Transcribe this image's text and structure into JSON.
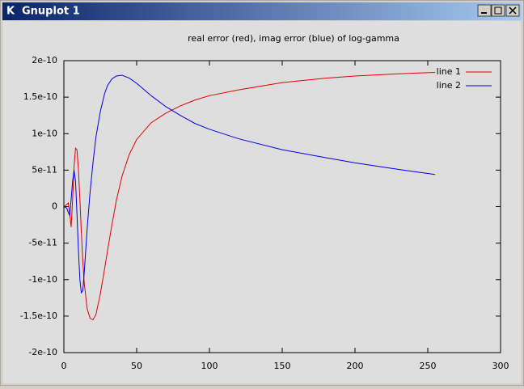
{
  "window": {
    "title": "Gnuplot 1"
  },
  "chart_data": {
    "type": "line",
    "title": "real error (red), imag error (blue) of log-gamma",
    "x": [
      0,
      2,
      3,
      4,
      5,
      6,
      7,
      8,
      9,
      10,
      11,
      12,
      13,
      14,
      16,
      18,
      20,
      22,
      25,
      28,
      30,
      33,
      36,
      40,
      45,
      50,
      60,
      70,
      80,
      90,
      100,
      120,
      150,
      180,
      200,
      230,
      255
    ],
    "series": [
      {
        "name": "line 1",
        "color": "#e00000",
        "values": [
          0,
          3e-12,
          5e-12,
          -1e-11,
          -2.8e-11,
          1e-11,
          5.5e-11,
          8e-11,
          7.8e-11,
          5e-11,
          1e-11,
          -3.5e-11,
          -7.5e-11,
          -1.05e-10,
          -1.4e-10,
          -1.53e-10,
          -1.55e-10,
          -1.48e-10,
          -1.2e-10,
          -8.5e-11,
          -6e-11,
          -2.5e-11,
          8e-12,
          4.2e-11,
          7.2e-11,
          9.2e-11,
          1.15e-10,
          1.28e-10,
          1.38e-10,
          1.46e-10,
          1.52e-10,
          1.6e-10,
          1.7e-10,
          1.76e-10,
          1.79e-10,
          1.82e-10,
          1.84e-10
        ]
      },
      {
        "name": "line 2",
        "color": "#0000e0",
        "values": [
          0,
          -2e-12,
          -8e-12,
          -1.2e-11,
          1e-11,
          3.5e-11,
          5e-11,
          3.5e-11,
          -1e-11,
          -6e-11,
          -1e-10,
          -1.18e-10,
          -1.15e-10,
          -9e-11,
          -3e-11,
          2e-11,
          6e-11,
          9.5e-11,
          1.3e-10,
          1.55e-10,
          1.66e-10,
          1.75e-10,
          1.79e-10,
          1.8e-10,
          1.76e-10,
          1.69e-10,
          1.52e-10,
          1.37e-10,
          1.25e-10,
          1.14e-10,
          1.06e-10,
          9.3e-11,
          7.8e-11,
          6.7e-11,
          6e-11,
          5.1e-11,
          4.4e-11
        ]
      }
    ],
    "xlim": [
      0,
      300
    ],
    "xticks": [
      0,
      50,
      100,
      150,
      200,
      250,
      300
    ],
    "ylim": [
      -2e-10,
      2e-10
    ],
    "yticks": [
      -2e-10,
      -1.5e-10,
      -1e-10,
      -5e-11,
      0,
      5e-11,
      1e-10,
      1.5e-10,
      2e-10
    ],
    "legend": "top-right"
  }
}
